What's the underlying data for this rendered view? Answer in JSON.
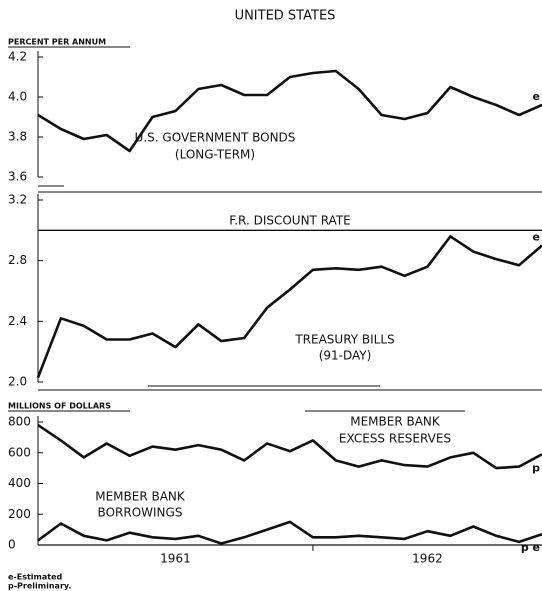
{
  "title": "UNITED STATES",
  "notes": [
    "e-Estimated",
    "p-Preliminary."
  ],
  "chart_data": [
    {
      "type": "line",
      "ylabel": "PERCENT PER ANNUM",
      "categories": [
        null,
        null,
        null,
        null,
        null,
        null,
        null,
        null,
        null,
        null,
        null,
        null,
        null,
        null,
        null,
        null,
        null,
        null,
        null,
        null,
        null,
        null,
        null
      ],
      "ylim": [
        3.6,
        4.2
      ],
      "yticks": [
        {
          "value": 3.6,
          "label": "3.6"
        },
        {
          "value": 3.8,
          "label": "3.8"
        },
        {
          "value": 4.0,
          "label": "4.0"
        },
        {
          "value": 4.2,
          "label": "4.2"
        }
      ],
      "series": [
        {
          "name": [
            "U.S. GOVERNMENT BONDS",
            "(LONG-TERM)"
          ],
          "color": "#111111",
          "end_label": "e",
          "values": [
            3.91,
            3.84,
            3.79,
            3.81,
            3.73,
            3.9,
            3.93,
            4.04,
            4.06,
            4.01,
            4.01,
            4.1,
            4.12,
            4.13,
            4.04,
            3.91,
            3.89,
            3.92,
            4.05,
            4.0,
            3.96,
            3.91,
            3.96
          ]
        }
      ]
    },
    {
      "type": "line",
      "categories": [
        null,
        null,
        null,
        null,
        null,
        null,
        null,
        null,
        null,
        null,
        null,
        null,
        null,
        null,
        null,
        null,
        null,
        null,
        null,
        null,
        null,
        null,
        null
      ],
      "ylim": [
        2.0,
        3.2
      ],
      "yticks": [
        {
          "value": 2.0,
          "label": "2.0"
        },
        2.4,
        2.8,
        3.2
      ],
      "series": [
        {
          "name": [
            "F.R. DISCOUNT RATE"
          ],
          "color": "#111111",
          "style": "thin",
          "values": [
            3,
            3,
            3,
            3,
            3,
            3,
            3,
            3,
            3,
            3,
            3,
            3,
            3,
            3,
            3,
            3,
            3,
            3,
            3,
            3,
            3,
            3,
            3
          ]
        },
        {
          "name": [
            "TREASURY BILLS",
            "(91-DAY)"
          ],
          "color": "#111111",
          "end_label": "e",
          "values": [
            2.03,
            2.42,
            2.37,
            2.28,
            2.28,
            2.32,
            2.23,
            2.38,
            2.27,
            2.29,
            2.49,
            2.61,
            2.74,
            2.75,
            2.74,
            2.76,
            2.7,
            2.76,
            2.96,
            2.86,
            2.81,
            2.77,
            2.9
          ]
        }
      ]
    },
    {
      "type": "line",
      "ylabel": "MILLIONS OF DOLLARS",
      "categories": [
        null,
        null,
        null,
        null,
        null,
        null,
        null,
        null,
        null,
        null,
        null,
        null,
        null,
        null,
        null,
        null,
        null,
        null,
        null,
        null,
        null,
        null,
        null
      ],
      "x_groups": [
        "1961",
        "1962"
      ],
      "ylim": [
        0,
        800
      ],
      "yticks": [
        0,
        200,
        400,
        600,
        800
      ],
      "series": [
        {
          "name": [
            "MEMBER BANK",
            "EXCESS RESERVES"
          ],
          "color": "#111111",
          "end_label": "p",
          "values": [
            780,
            680,
            570,
            660,
            580,
            640,
            620,
            650,
            620,
            550,
            660,
            610,
            680,
            550,
            510,
            550,
            520,
            510,
            570,
            600,
            500,
            510,
            590
          ]
        },
        {
          "name": [
            "MEMBER BANK",
            "BORROWINGS"
          ],
          "color": "#111111",
          "end_label": "p e",
          "values": [
            30,
            140,
            60,
            30,
            80,
            50,
            40,
            60,
            10,
            50,
            100,
            150,
            50,
            50,
            60,
            50,
            40,
            90,
            60,
            120,
            60,
            20,
            70
          ]
        }
      ]
    }
  ]
}
